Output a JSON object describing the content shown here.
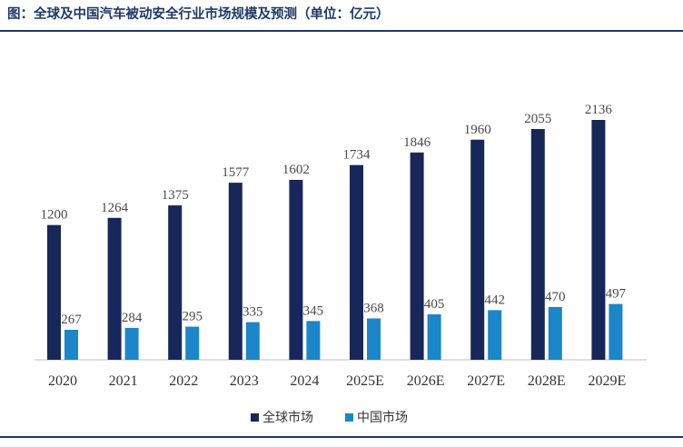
{
  "title": "图：全球及中国汽车被动安全行业市场规模及预测（单位：亿元）",
  "colors": {
    "global": "#17275a",
    "china": "#1b86c9",
    "rule": "#1f3a68",
    "axis": "#bfbfbf",
    "label": "#4a4a4a"
  },
  "chart_data": {
    "type": "bar",
    "categories": [
      "2020",
      "2021",
      "2022",
      "2023",
      "2024",
      "2025E",
      "2026E",
      "2027E",
      "2028E",
      "2029E"
    ],
    "series": [
      {
        "name": "全球市场",
        "values": [
          1200,
          1264,
          1375,
          1577,
          1602,
          1734,
          1846,
          1960,
          2055,
          2136
        ]
      },
      {
        "name": "中国市场",
        "values": [
          267,
          284,
          295,
          335,
          345,
          368,
          405,
          442,
          470,
          497
        ]
      }
    ],
    "legend": "bottom",
    "grid": false,
    "data_labels": true
  }
}
